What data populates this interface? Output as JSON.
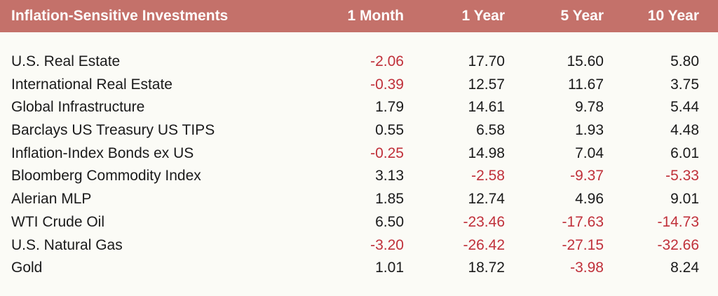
{
  "chart_data": {
    "type": "table",
    "title": "Inflation-Sensitive Investments",
    "columns": [
      "1 Month",
      "1 Year",
      "5 Year",
      "10 Year"
    ],
    "rows": [
      {
        "name": "U.S. Real Estate",
        "values": [
          "-2.06",
          "17.70",
          "15.60",
          "5.80"
        ]
      },
      {
        "name": "International Real Estate",
        "values": [
          "-0.39",
          "12.57",
          "11.67",
          "3.75"
        ]
      },
      {
        "name": "Global Infrastructure",
        "values": [
          "1.79",
          "14.61",
          "9.78",
          "5.44"
        ]
      },
      {
        "name": "Barclays US Treasury US TIPS",
        "values": [
          "0.55",
          "6.58",
          "1.93",
          "4.48"
        ]
      },
      {
        "name": "Inflation-Index Bonds ex US",
        "values": [
          "-0.25",
          "14.98",
          "7.04",
          "6.01"
        ]
      },
      {
        "name": "Bloomberg Commodity Index",
        "values": [
          "3.13",
          "-2.58",
          "-9.37",
          "-5.33"
        ]
      },
      {
        "name": "Alerian MLP",
        "values": [
          "1.85",
          "12.74",
          "4.96",
          "9.01"
        ]
      },
      {
        "name": "WTI Crude Oil",
        "values": [
          "6.50",
          "-23.46",
          "-17.63",
          "-14.73"
        ]
      },
      {
        "name": "U.S. Natural Gas",
        "values": [
          "-3.20",
          "-26.42",
          "-27.15",
          "-32.66"
        ]
      },
      {
        "name": "Gold",
        "values": [
          "1.01",
          "18.72",
          "-3.98",
          "8.24"
        ]
      }
    ]
  },
  "colors": {
    "header_bg": "#c4716a",
    "header_text": "#ffffff",
    "negative": "#c0303a",
    "positive": "#1a1a1a"
  }
}
